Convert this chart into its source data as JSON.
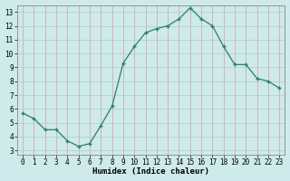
{
  "x": [
    0,
    1,
    2,
    3,
    4,
    5,
    6,
    7,
    8,
    9,
    10,
    11,
    12,
    13,
    14,
    15,
    16,
    17,
    18,
    19,
    20,
    21,
    22,
    23
  ],
  "y": [
    5.7,
    5.3,
    4.5,
    4.5,
    3.7,
    3.3,
    3.5,
    4.8,
    6.2,
    9.3,
    10.5,
    11.5,
    11.8,
    12.0,
    12.5,
    13.3,
    12.5,
    12.0,
    10.5,
    9.2,
    9.2,
    8.2,
    8.0,
    7.5
  ],
  "xlim": [
    -0.5,
    23.5
  ],
  "ylim": [
    2.7,
    13.5
  ],
  "yticks": [
    3,
    4,
    5,
    6,
    7,
    8,
    9,
    10,
    11,
    12,
    13
  ],
  "xticks": [
    0,
    1,
    2,
    3,
    4,
    5,
    6,
    7,
    8,
    9,
    10,
    11,
    12,
    13,
    14,
    15,
    16,
    17,
    18,
    19,
    20,
    21,
    22,
    23
  ],
  "xlabel": "Humidex (Indice chaleur)",
  "line_color": "#2d7d6e",
  "marker": "+",
  "bg_color": "#ceeaea",
  "red_grid_color": "#d4a0a0",
  "teal_grid_color": "#a8cece",
  "xlabel_fontsize": 6.5,
  "tick_fontsize": 5.5
}
